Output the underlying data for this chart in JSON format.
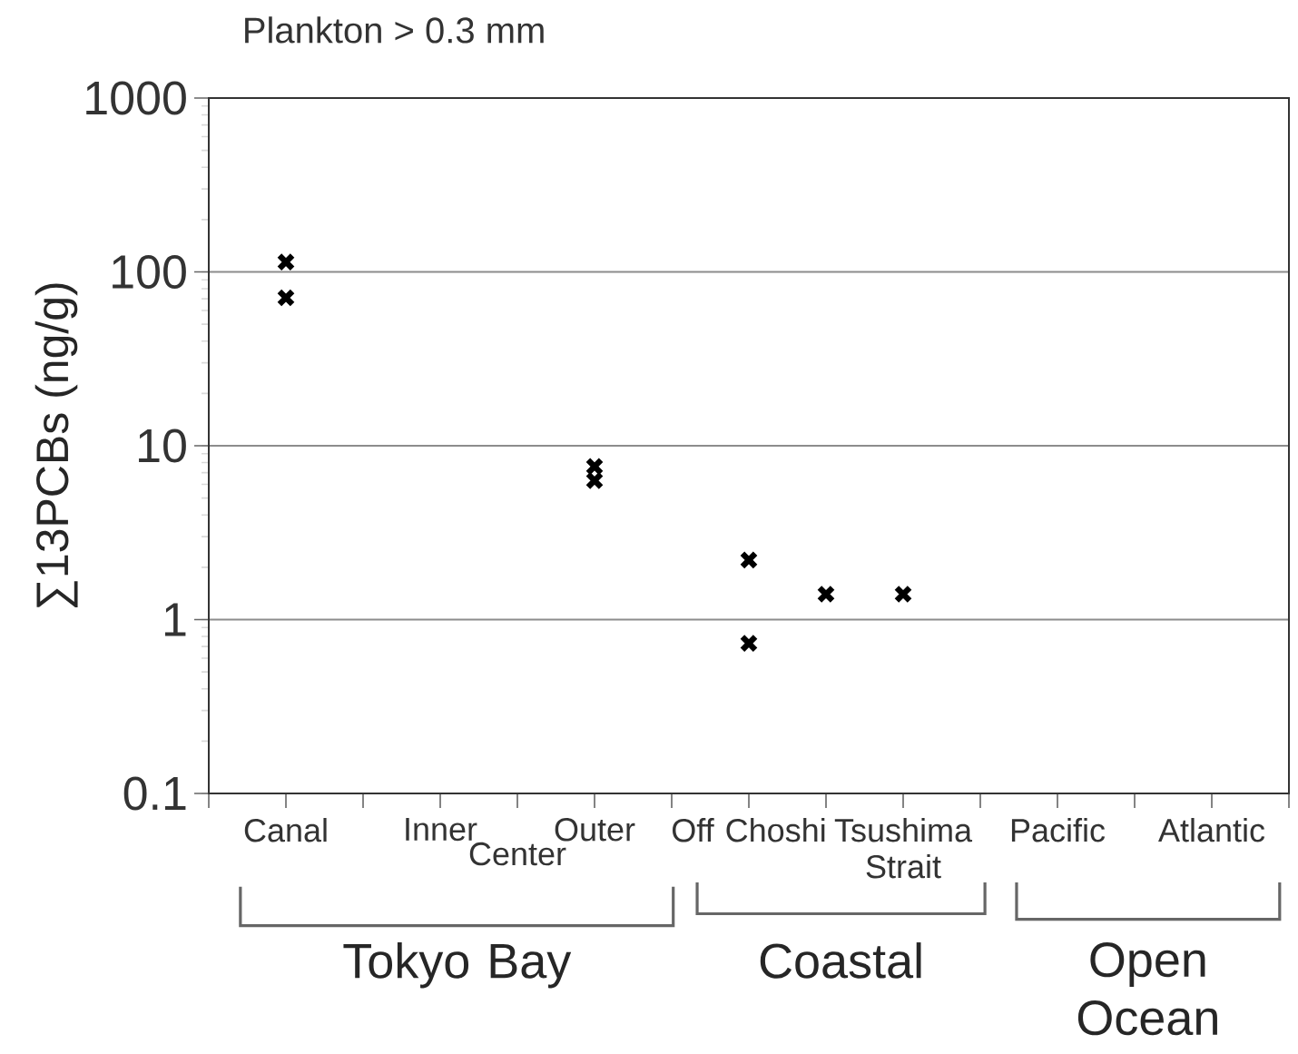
{
  "chart_data": {
    "type": "scatter",
    "title": "Plankton > 0.3 mm",
    "ylabel": "∑13PCBs (ng/g)",
    "categories": [
      "Canal",
      null,
      "Inner",
      "Center",
      "Outer",
      null,
      "Off Choshi",
      null,
      "Tsushima Strait",
      null,
      "Pacific",
      null,
      "Atlantic"
    ],
    "series": [
      {
        "color": "#000000",
        "values": [
          114,
          null,
          null,
          null,
          7.6,
          null,
          2.2,
          1.4,
          1.4,
          null,
          null,
          null,
          null
        ]
      },
      {
        "color": "#000000",
        "values": [
          71,
          null,
          null,
          null,
          6.3,
          null,
          0.73,
          null,
          null,
          null,
          null,
          null,
          null
        ]
      }
    ],
    "log": "y",
    "ylim": [
      0.1,
      1000
    ],
    "yticks": [
      0.1,
      1,
      10,
      100,
      1000
    ],
    "grid": "y",
    "marker": "cross",
    "annotations": [
      "Tokyo Bay",
      "Coastal",
      "Open Ocean"
    ]
  }
}
